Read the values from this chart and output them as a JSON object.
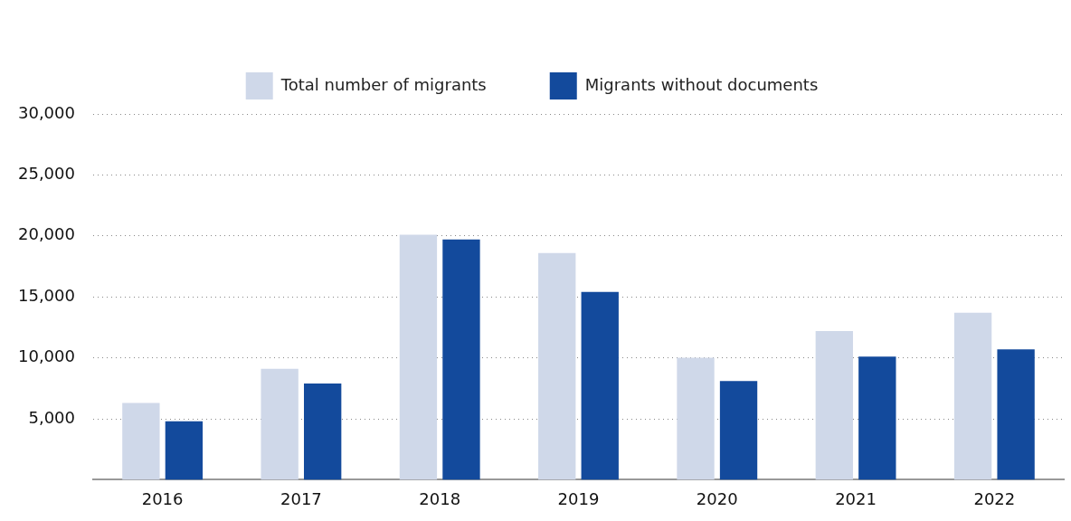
{
  "chart_data": {
    "type": "bar",
    "categories": [
      "2016",
      "2017",
      "2018",
      "2019",
      "2020",
      "2021",
      "2022"
    ],
    "series": [
      {
        "name": "Total number of migrants",
        "color": "#cfd8e9",
        "values": [
          6300,
          9100,
          20100,
          18600,
          10000,
          12200,
          13700
        ]
      },
      {
        "name": "Migrants without documents",
        "color": "#134a9c",
        "values": [
          4800,
          7900,
          19700,
          15400,
          8100,
          10100,
          10700
        ]
      }
    ],
    "ylim": [
      0,
      30000
    ],
    "yticks": [
      {
        "value": 5000,
        "label": "5,000"
      },
      {
        "value": 10000,
        "label": "10,000"
      },
      {
        "value": 15000,
        "label": "15,000"
      },
      {
        "value": 20000,
        "label": "20,000"
      },
      {
        "value": 25000,
        "label": "25,000"
      },
      {
        "value": 30000,
        "label": "30,000"
      }
    ],
    "grid": "y",
    "legend": "top"
  }
}
